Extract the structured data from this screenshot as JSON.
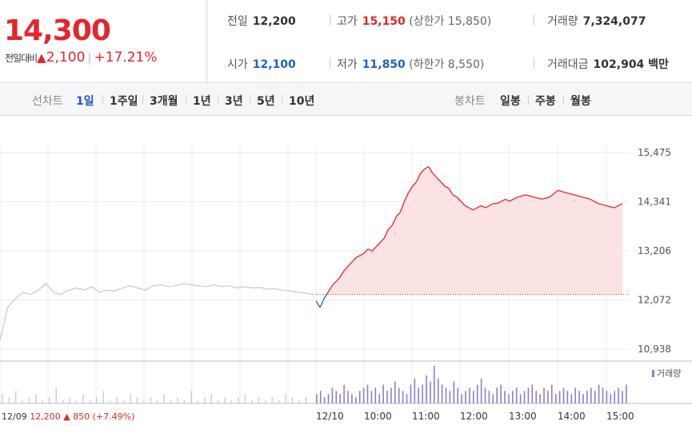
{
  "quote": {
    "price": "14,300",
    "change_label": "전일대비",
    "change_icon": "up-triangle-icon",
    "change_value": "2,100",
    "change_pct": "+17.21%"
  },
  "stats": {
    "prev_close": {
      "label": "전일",
      "value": "12,200"
    },
    "high": {
      "label": "고가",
      "value": "15,150",
      "extra": "(상한가 15,850)"
    },
    "volume": {
      "label": "거래량",
      "value": "7,324,077"
    },
    "open": {
      "label": "시가",
      "value": "12,100"
    },
    "low": {
      "label": "저가",
      "value": "11,850",
      "extra": "(하한가 8,550)"
    },
    "trade_value": {
      "label": "거래대금",
      "value": "102,904 백만"
    }
  },
  "tabs": {
    "line_label": "선차트",
    "line_periods": [
      "1일",
      "1주일",
      "3개월",
      "1년",
      "3년",
      "5년",
      "10년"
    ],
    "active": "1일",
    "candle_label": "봉차트",
    "candle_periods": [
      "일봉",
      "주봉",
      "월봉"
    ]
  },
  "colors": {
    "up": "#e3262a",
    "down": "#2060c8",
    "prev_line": "#c8c8c8",
    "volume": "#8a7fcf",
    "fill": "#fbe3e4"
  },
  "chart_data": {
    "type": "line",
    "y_ticks": [
      "15,475",
      "14,341",
      "13,206",
      "12,072",
      "10,938"
    ],
    "ylim": [
      10938,
      15475
    ],
    "base_price": 12200,
    "x_labels": [
      "12/09",
      "12/10",
      "10:00",
      "11:00",
      "12:00",
      "13:00",
      "14:00",
      "15:00"
    ],
    "prev_day_info": {
      "date": "12/09",
      "close": "12,200",
      "change": "▲ 850",
      "pct": "(+7.49%)"
    },
    "legend": "거래량",
    "prev_day_series": [
      11150,
      11900,
      12100,
      12250,
      12200,
      12300,
      12450,
      12250,
      12200,
      12300,
      12350,
      12300,
      12380,
      12250,
      12300,
      12280,
      12350,
      12400,
      12350,
      12300,
      12400,
      12420,
      12380,
      12400,
      12450,
      12420,
      12400,
      12380,
      12420,
      12380,
      12400,
      12350,
      12380,
      12350,
      12360,
      12320,
      12330,
      12300,
      12280,
      12250,
      12230,
      12200
    ],
    "today_series": [
      [
        "09:00",
        12050
      ],
      [
        "09:05",
        11900
      ],
      [
        "09:10",
        12100
      ],
      [
        "09:15",
        12250
      ],
      [
        "09:20",
        12400
      ],
      [
        "09:25",
        12500
      ],
      [
        "09:30",
        12600
      ],
      [
        "09:35",
        12750
      ],
      [
        "09:40",
        12850
      ],
      [
        "09:45",
        12950
      ],
      [
        "09:50",
        13050
      ],
      [
        "09:55",
        13100
      ],
      [
        "10:00",
        13150
      ],
      [
        "10:05",
        13250
      ],
      [
        "10:10",
        13200
      ],
      [
        "10:15",
        13300
      ],
      [
        "10:20",
        13400
      ],
      [
        "10:25",
        13500
      ],
      [
        "10:30",
        13700
      ],
      [
        "10:35",
        13800
      ],
      [
        "10:40",
        14000
      ],
      [
        "10:45",
        14100
      ],
      [
        "10:50",
        14350
      ],
      [
        "10:55",
        14550
      ],
      [
        "11:00",
        14700
      ],
      [
        "11:05",
        14800
      ],
      [
        "11:10",
        15000
      ],
      [
        "11:15",
        15100
      ],
      [
        "11:20",
        15150
      ],
      [
        "11:25",
        15000
      ],
      [
        "11:30",
        14900
      ],
      [
        "11:35",
        14800
      ],
      [
        "11:40",
        14700
      ],
      [
        "11:45",
        14650
      ],
      [
        "11:50",
        14500
      ],
      [
        "11:55",
        14450
      ],
      [
        "12:00",
        14350
      ],
      [
        "12:05",
        14250
      ],
      [
        "12:10",
        14200
      ],
      [
        "12:15",
        14150
      ],
      [
        "12:20",
        14200
      ],
      [
        "12:25",
        14250
      ],
      [
        "12:30",
        14200
      ],
      [
        "12:35",
        14250
      ],
      [
        "12:40",
        14300
      ],
      [
        "12:45",
        14300
      ],
      [
        "12:50",
        14350
      ],
      [
        "12:55",
        14400
      ],
      [
        "13:00",
        14350
      ],
      [
        "13:10",
        14450
      ],
      [
        "13:20",
        14500
      ],
      [
        "13:30",
        14450
      ],
      [
        "13:40",
        14400
      ],
      [
        "13:50",
        14450
      ],
      [
        "14:00",
        14600
      ],
      [
        "14:10",
        14550
      ],
      [
        "14:20",
        14500
      ],
      [
        "14:30",
        14450
      ],
      [
        "14:40",
        14400
      ],
      [
        "14:50",
        14300
      ],
      [
        "15:00",
        14250
      ],
      [
        "15:10",
        14200
      ],
      [
        "15:20",
        14300
      ]
    ],
    "volume_prev": [
      3,
      2,
      4,
      1,
      2,
      3,
      1,
      2,
      5,
      1,
      2,
      1,
      3,
      1,
      2,
      4,
      1,
      2,
      1,
      3,
      2,
      1,
      2,
      1,
      3,
      1,
      2,
      1,
      4,
      1,
      2,
      3,
      1,
      2,
      1,
      2,
      3,
      1,
      2,
      1,
      2,
      1,
      3,
      2,
      1,
      2
    ],
    "volume_today": [
      3,
      4,
      2,
      3,
      5,
      4,
      3,
      6,
      4,
      3,
      2,
      4,
      5,
      6,
      4,
      5,
      3,
      6,
      4,
      5,
      7,
      5,
      4,
      3,
      6,
      8,
      5,
      6,
      9,
      7,
      12,
      8,
      6,
      5,
      4,
      7,
      5,
      3,
      4,
      5,
      4,
      6,
      8,
      5,
      4,
      3,
      5,
      6,
      4,
      3,
      4,
      5,
      3,
      4,
      5,
      6,
      4,
      3,
      5,
      4,
      6,
      3,
      4,
      5,
      4,
      3,
      5,
      4,
      3,
      4,
      5,
      4,
      6,
      5,
      4,
      3,
      4,
      5,
      4,
      6
    ]
  }
}
